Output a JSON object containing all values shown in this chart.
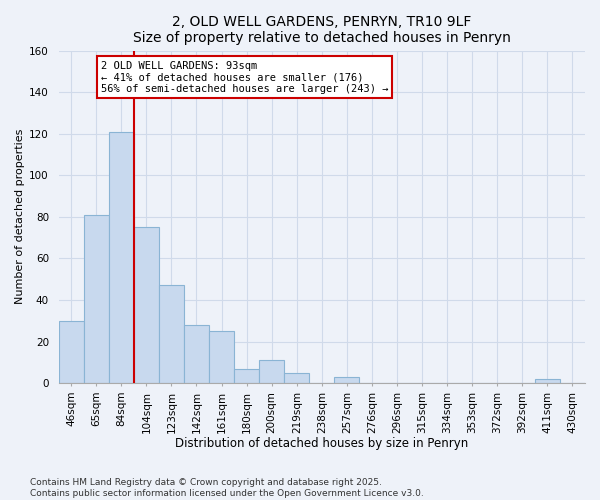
{
  "title": "2, OLD WELL GARDENS, PENRYN, TR10 9LF",
  "subtitle": "Size of property relative to detached houses in Penryn",
  "xlabel": "Distribution of detached houses by size in Penryn",
  "ylabel": "Number of detached properties",
  "bar_values": [
    30,
    81,
    121,
    75,
    47,
    28,
    25,
    7,
    11,
    5,
    0,
    3,
    0,
    0,
    0,
    0,
    0,
    0,
    0,
    2,
    0
  ],
  "bin_labels": [
    "46sqm",
    "65sqm",
    "84sqm",
    "104sqm",
    "123sqm",
    "142sqm",
    "161sqm",
    "180sqm",
    "200sqm",
    "219sqm",
    "238sqm",
    "257sqm",
    "276sqm",
    "296sqm",
    "315sqm",
    "334sqm",
    "353sqm",
    "372sqm",
    "392sqm",
    "411sqm",
    "430sqm"
  ],
  "bar_color": "#c8d9ee",
  "bar_edge_color": "#8ab4d4",
  "vline_color": "#cc0000",
  "annotation_title": "2 OLD WELL GARDENS: 93sqm",
  "annotation_line1": "← 41% of detached houses are smaller (176)",
  "annotation_line2": "56% of semi-detached houses are larger (243) →",
  "annotation_box_color": "#ffffff",
  "annotation_box_edge": "#cc0000",
  "ylim": [
    0,
    160
  ],
  "yticks": [
    0,
    20,
    40,
    60,
    80,
    100,
    120,
    140,
    160
  ],
  "footer_line1": "Contains HM Land Registry data © Crown copyright and database right 2025.",
  "footer_line2": "Contains public sector information licensed under the Open Government Licence v3.0.",
  "background_color": "#eef2f9",
  "plot_bg_color": "#eef2f9",
  "grid_color": "#d0daea",
  "title_fontsize": 10,
  "xlabel_fontsize": 8.5,
  "ylabel_fontsize": 8,
  "tick_fontsize": 7.5,
  "footer_fontsize": 6.5,
  "annotation_fontsize": 7.5
}
